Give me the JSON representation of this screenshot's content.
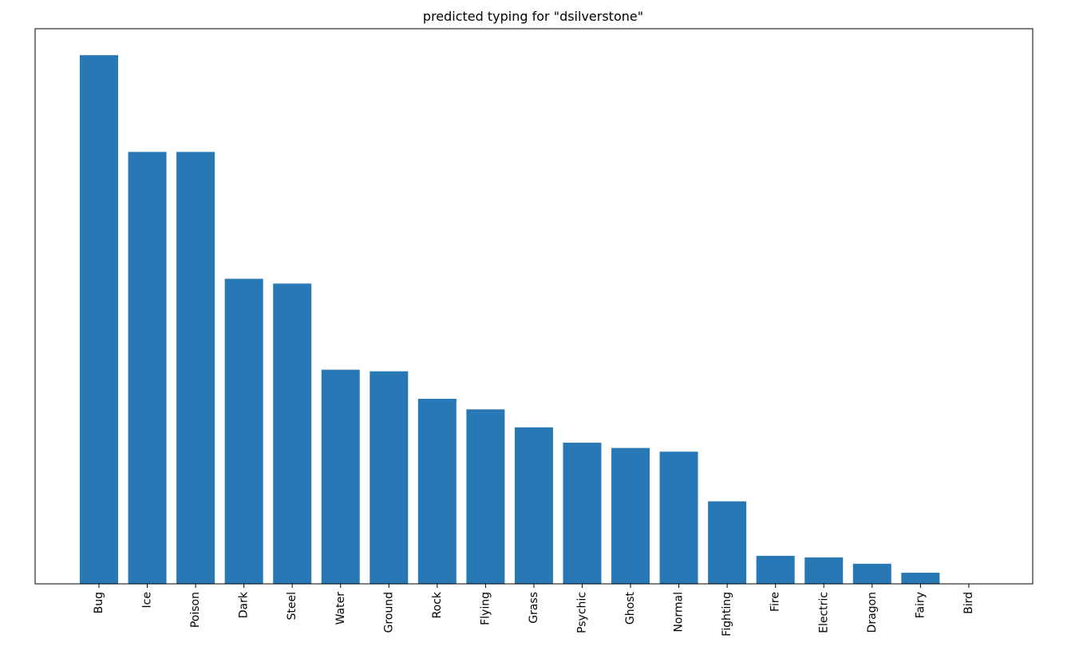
{
  "chart_data": {
    "type": "bar",
    "title": "predicted typing for \"dsilverstone\"",
    "xlabel": "",
    "ylabel": "",
    "categories": [
      "Bug",
      "Ice",
      "Poison",
      "Dark",
      "Steel",
      "Water",
      "Ground",
      "Rock",
      "Flying",
      "Grass",
      "Psychic",
      "Ghost",
      "Normal",
      "Fighting",
      "Fire",
      "Electric",
      "Dragon",
      "Fairy",
      "Bird"
    ],
    "values": [
      100,
      81.7,
      81.7,
      57.7,
      56.8,
      40.5,
      40.2,
      35.0,
      33.0,
      29.6,
      26.7,
      25.7,
      25.0,
      15.6,
      5.3,
      5.0,
      3.8,
      2.1,
      0
    ],
    "ylim": [
      0,
      105
    ],
    "y_ticks_visible": false,
    "grid": false,
    "legend": "none",
    "bar_color": "#2878b5",
    "x_tick_rotation": "vertical"
  }
}
